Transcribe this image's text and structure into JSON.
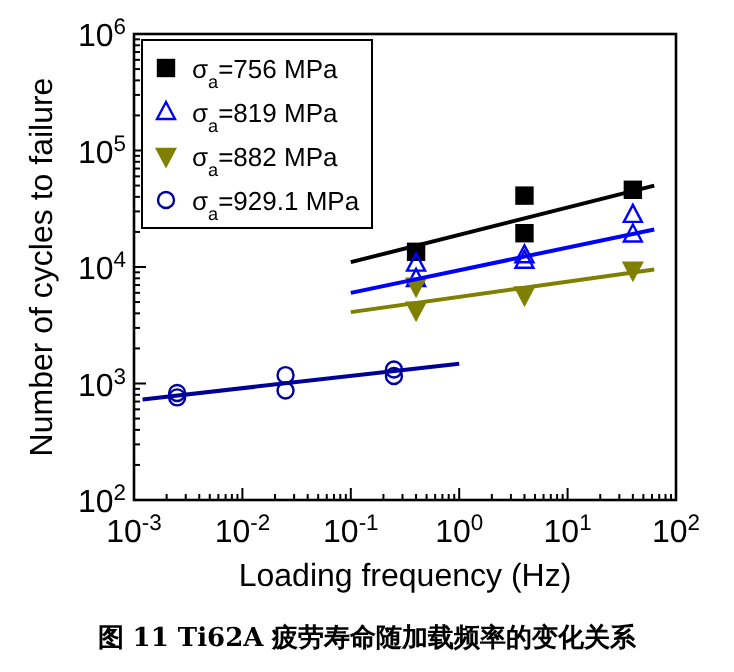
{
  "chart_data": {
    "type": "scatter",
    "xlabel": "Loading frequency (Hz)",
    "ylabel": "Number of cycles to failure",
    "log": "xy",
    "xlim": [
      0.001,
      100
    ],
    "ylim": [
      100,
      1000000
    ],
    "xticks": [
      {
        "value": 0.001,
        "label": "10$^{-3}$"
      },
      {
        "value": 0.01,
        "label": "10$^{-2}$"
      },
      {
        "value": 0.1,
        "label": "10$^{-1}$"
      },
      {
        "value": 1,
        "label": "10$^{0}$"
      },
      {
        "value": 10,
        "label": "10$^{1}$"
      },
      {
        "value": 100,
        "label": "10$^{2}$"
      }
    ],
    "yticks": [
      {
        "value": 100,
        "label": "10$^{2}$"
      },
      {
        "value": 1000,
        "label": "10$^{3}$"
      },
      {
        "value": 10000,
        "label": "10$^{4}$"
      },
      {
        "value": 100000,
        "label": "10$^{5}$"
      },
      {
        "value": 1000000,
        "label": "10$^{6}$"
      }
    ],
    "legend": "top left",
    "grid": false,
    "series": [
      {
        "name": "σ$_{a}$=756 MPa",
        "color": "#000000",
        "marker": "square",
        "x": [
          0.4,
          4,
          4,
          40
        ],
        "values": [
          13500,
          41000,
          19500,
          46000
        ]
      },
      {
        "name": "σ$_{a}$=819 MPa",
        "color": "#0000ff",
        "marker": "triangle",
        "x": [
          0.4,
          0.4,
          4,
          4,
          40,
          40
        ],
        "values": [
          10700,
          7900,
          12600,
          11300,
          28000,
          19000
        ]
      },
      {
        "name": "σ$_{a}$=882 MPa",
        "color": "#808000",
        "marker": "triangle-down",
        "x": [
          0.4,
          0.4,
          4,
          40
        ],
        "values": [
          6900,
          4300,
          5800,
          9500
        ]
      },
      {
        "name": "σ$_{a}$=929.1 MPa",
        "color": "#0000a0",
        "marker": "circle",
        "x": [
          0.0025,
          0.0025,
          0.025,
          0.025,
          0.25,
          0.25
        ],
        "values": [
          830,
          760,
          1180,
          870,
          1320,
          1160
        ]
      },
      {
        "type": "line",
        "color": "#000000",
        "x": [
          0.1,
          63
        ],
        "values": [
          11000,
          50000
        ]
      },
      {
        "type": "line",
        "color": "#0000ff",
        "x": [
          0.1,
          63
        ],
        "values": [
          6000,
          21000
        ]
      },
      {
        "type": "line",
        "color": "#808000",
        "x": [
          0.1,
          63
        ],
        "values": [
          4100,
          9500
        ]
      },
      {
        "type": "line",
        "color": "#000099",
        "x": [
          0.0012,
          1
        ],
        "values": [
          730,
          1480
        ]
      }
    ],
    "annotations": [
      "图 11 Ti62A 疲劳寿命随加载频率的变化关系"
    ]
  }
}
